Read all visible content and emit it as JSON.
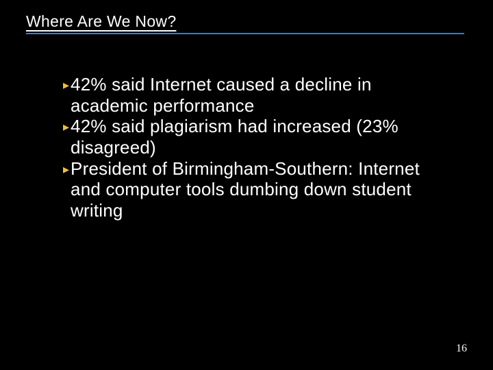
{
  "slide": {
    "title": "Where Are We Now?",
    "bullets": [
      "42% said Internet caused a decline in academic performance",
      "42% said plagiarism had increased (23% disagreed)",
      "President of Birmingham-Southern: Internet and computer tools dumbing down student writing"
    ],
    "page_number": "16"
  },
  "style": {
    "background_color": "#000000",
    "title_color": "#ffffff",
    "title_fontsize": 23,
    "underline_color": "#4a7ab5",
    "bullet_color": "#f2c230",
    "text_color": "#ffffff",
    "body_fontsize": 26,
    "page_number_fontsize": 16
  }
}
